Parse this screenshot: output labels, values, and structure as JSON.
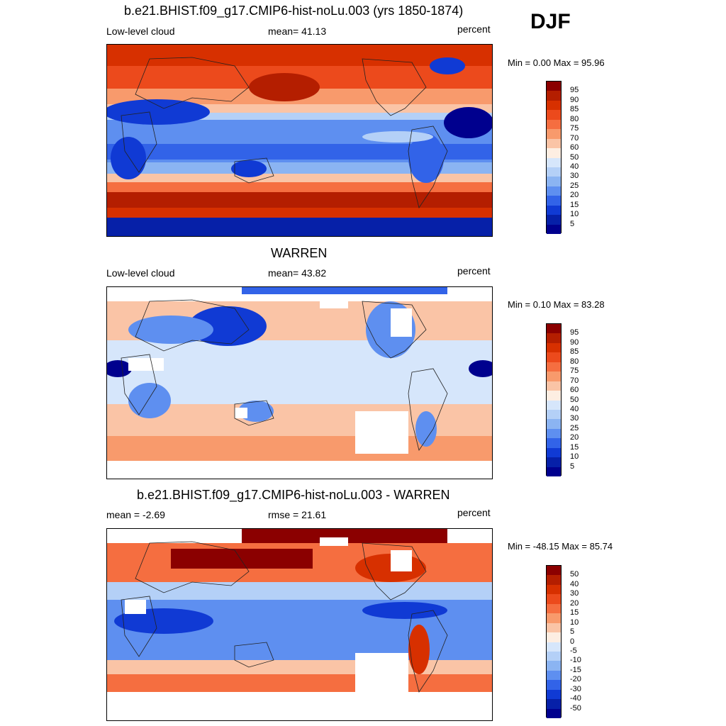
{
  "season": "DJF",
  "units": "percent",
  "panels": [
    {
      "title": "b.e21.BHIST.f09_g17.CMIP6-hist-noLu.003 (yrs 1850-1874)",
      "left_label": "Low-level cloud",
      "center_label": "mean=  41.13",
      "right_label": "percent",
      "minmax_label": "Min =   0.00 Max =  95.96"
    },
    {
      "title": "WARREN",
      "left_label": "Low-level cloud",
      "center_label": "mean=  43.82",
      "right_label": "percent",
      "minmax_label": "Min =   0.10 Max =  83.28"
    },
    {
      "title": "b.e21.BHIST.f09_g17.CMIP6-hist-noLu.003 - WARREN",
      "left_label": "mean =  -2.69",
      "center_label": "rmse =  21.61",
      "right_label": "percent",
      "minmax_label": "Min = -48.15 Max =  85.74"
    }
  ],
  "colorbars": {
    "absolute": {
      "levels": [
        "95",
        "90",
        "85",
        "80",
        "75",
        "70",
        "60",
        "50",
        "40",
        "30",
        "25",
        "20",
        "15",
        "10",
        "5"
      ],
      "colors": [
        "#8b0000",
        "#b41e00",
        "#d73000",
        "#ec4a1c",
        "#f56e40",
        "#f89a6c",
        "#fac4a6",
        "#fdeee2",
        "#d6e6fb",
        "#b4d0f7",
        "#8bb4f2",
        "#5e8ff0",
        "#3263e8",
        "#103ad4",
        "#0620a8",
        "#00008e"
      ]
    },
    "difference": {
      "levels": [
        "50",
        "40",
        "30",
        "20",
        "15",
        "10",
        "5",
        "0",
        "-5",
        "-10",
        "-15",
        "-20",
        "-30",
        "-40",
        "-50"
      ],
      "colors": [
        "#8b0000",
        "#b41e00",
        "#d73000",
        "#ec4a1c",
        "#f56e40",
        "#f89a6c",
        "#fac4a6",
        "#fdeee2",
        "#d6e6fb",
        "#b4d0f7",
        "#8bb4f2",
        "#5e8ff0",
        "#3263e8",
        "#103ad4",
        "#0620a8",
        "#00008e"
      ]
    }
  }
}
